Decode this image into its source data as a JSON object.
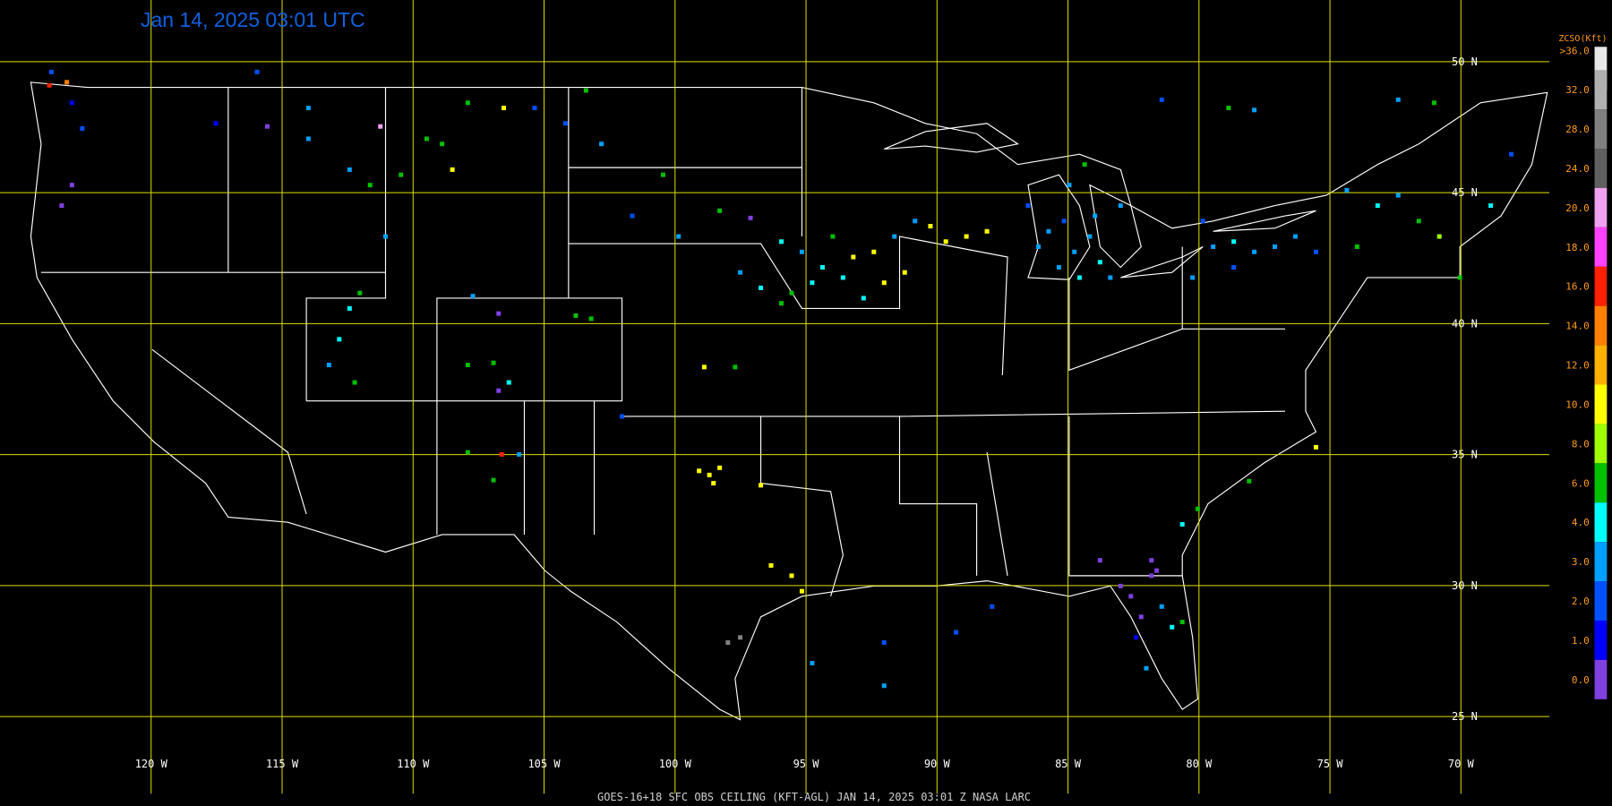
{
  "title": "Jan 14, 2025 03:01 UTC",
  "footer": "GOES-16+18  SFC OBS CEILING (KFT-AGL)  JAN 14, 2025 03:01 Z   NASA LARC",
  "latitudes": [
    "50 N",
    "45 N",
    "40 N",
    "35 N",
    "30 N",
    "25 N"
  ],
  "longitudes": [
    "120 W",
    "115 W",
    "110 W",
    "105 W",
    "100 W",
    "95 W",
    "90 W",
    "85 W",
    "80 W",
    "75 W",
    "70 W"
  ],
  "grid_color": "#e0e000",
  "legend": {
    "title": "ZCSO(Kft)",
    "labels": [
      ">36.0",
      "32.0",
      "28.0",
      "24.0",
      "20.0",
      "18.0",
      "16.0",
      "14.0",
      "12.0",
      "10.0",
      "8.0",
      "6.0",
      "4.0",
      "3.0",
      "2.0",
      "1.0",
      "0.0"
    ],
    "colors": [
      "#e8e8e8",
      "#b0b0b0",
      "#808080",
      "#606060",
      "#f0a0f0",
      "#ff40ff",
      "#ff2000",
      "#ff8000",
      "#ffb000",
      "#ffff00",
      "#a0ff00",
      "#00c000",
      "#00ffff",
      "#00a0ff",
      "#0050ff",
      "#0000ff",
      "#8040e0"
    ]
  }
}
